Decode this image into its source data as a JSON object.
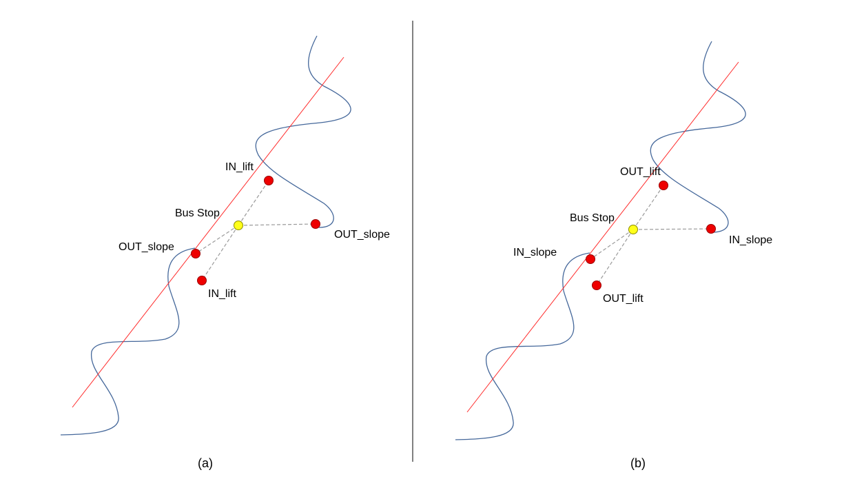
{
  "colors": {
    "road": "#44679a",
    "lift_line": "#ff2a2a",
    "connector": "#9a9a9a",
    "stop_fill": "#ffff1a",
    "point_fill": "#ee0000",
    "point_stroke": "#9a0000",
    "divider": "#000000"
  },
  "panel_a": {
    "caption": "(a)",
    "bus_stop": "Bus Stop",
    "upper_lift": "IN_lift",
    "right_slope": "OUT_slope",
    "left_slope": "OUT_slope",
    "lower_lift": "IN_lift"
  },
  "panel_b": {
    "caption": "(b)",
    "bus_stop": "Bus Stop",
    "upper_lift": "OUT_lift",
    "right_slope": "IN_slope",
    "left_slope": "IN_slope",
    "lower_lift": "OUT_lift"
  }
}
